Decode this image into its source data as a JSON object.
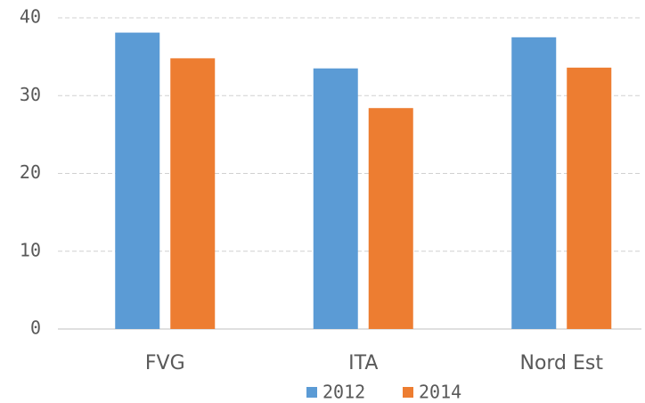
{
  "chart_data": {
    "type": "bar",
    "categories": [
      "FVG",
      "ITA",
      "Nord Est"
    ],
    "series": [
      {
        "name": "2012",
        "color": "#5b9bd5",
        "values": [
          38.1,
          33.5,
          37.5
        ]
      },
      {
        "name": "2014",
        "color": "#ed7d31",
        "values": [
          34.8,
          28.4,
          33.6
        ]
      }
    ],
    "ylim": [
      0,
      40
    ],
    "yticks": [
      0,
      10,
      20,
      30,
      40
    ],
    "grid": true,
    "legend": "bottom"
  }
}
